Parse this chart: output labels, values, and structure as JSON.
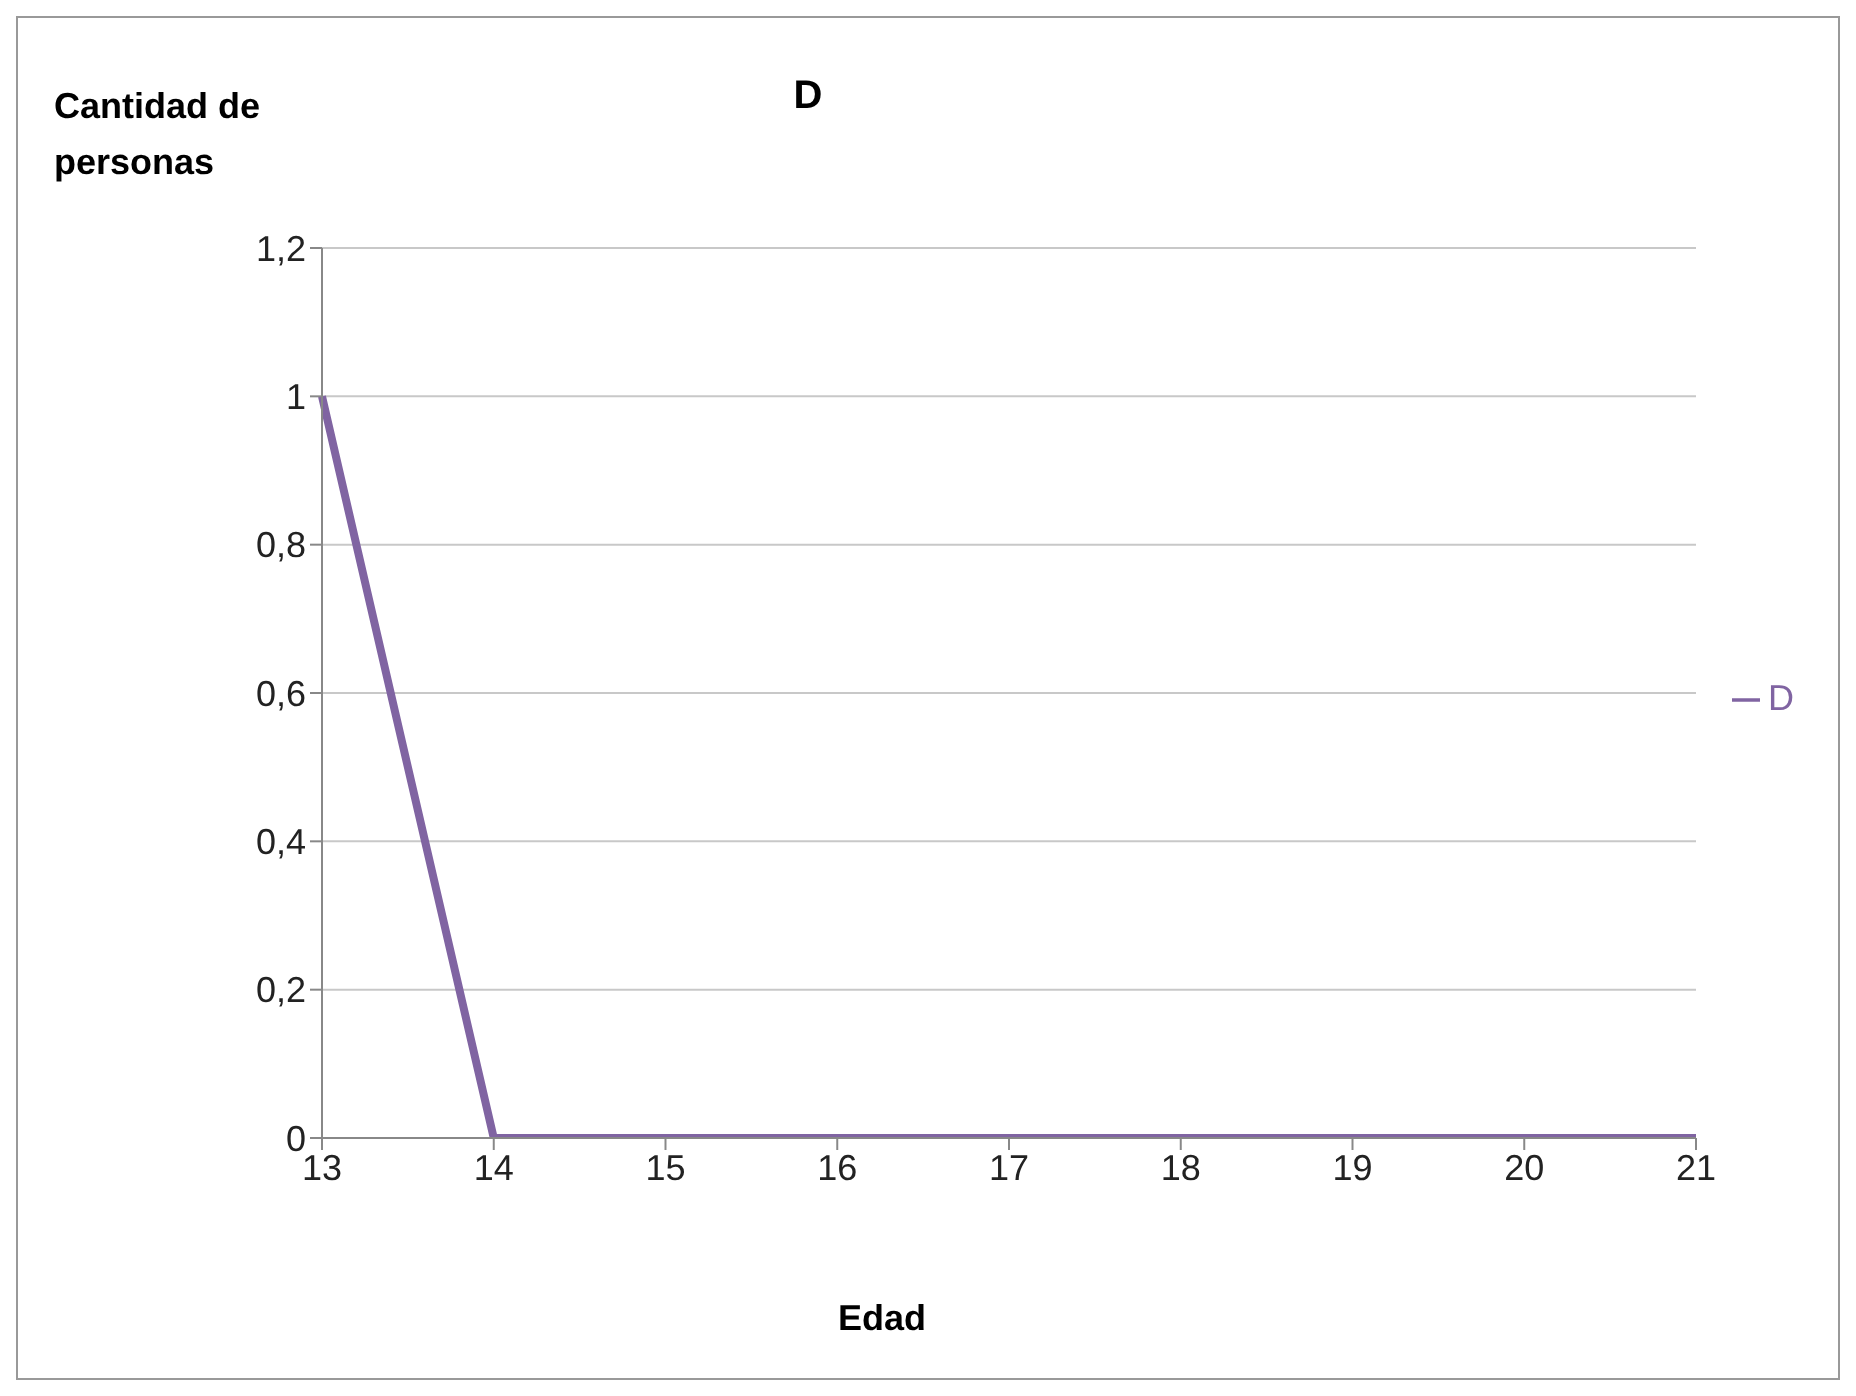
{
  "chart_data": {
    "type": "line",
    "title": "D",
    "xlabel": "Edad",
    "ylabel": "Cantidad de personas",
    "categories": [
      "13",
      "14",
      "15",
      "16",
      "17",
      "18",
      "19",
      "20",
      "21"
    ],
    "series": [
      {
        "name": "D",
        "color": "#8064a2",
        "values": [
          1,
          0,
          0,
          0,
          0,
          0,
          0,
          0,
          0
        ]
      }
    ],
    "ylim": [
      0,
      1.2
    ],
    "yticks": [
      0,
      {
        "value": 0.2,
        "label": "0,2"
      },
      {
        "value": 0.4,
        "label": "0,4"
      },
      {
        "value": 0.6,
        "label": "0,6"
      },
      {
        "value": 0.8,
        "label": "0,8"
      },
      1,
      {
        "value": 1.2,
        "label": "1,2"
      }
    ],
    "grid": "y",
    "legend": "right",
    "marker": "none",
    "line_style": "solid"
  }
}
